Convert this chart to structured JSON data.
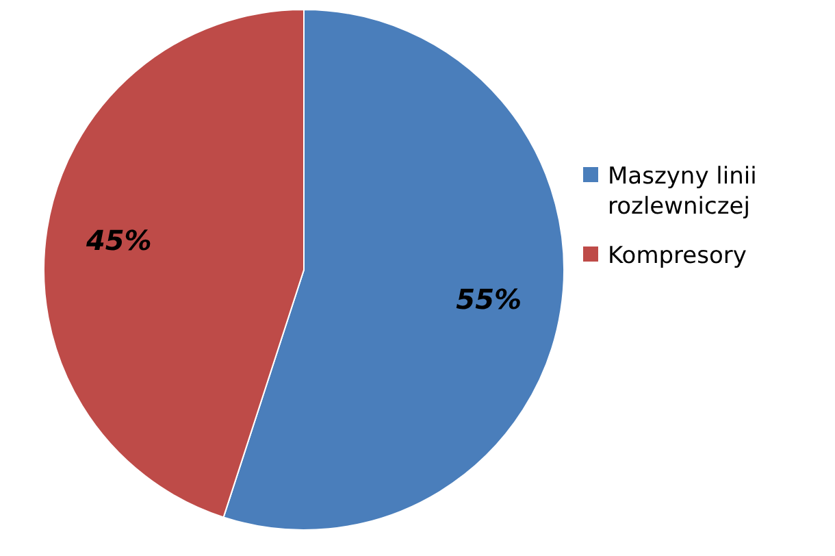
{
  "chart_data": {
    "type": "pie",
    "categories": [
      "Maszyny linii rozlewniczej",
      "Kompresory"
    ],
    "values": [
      55,
      45
    ],
    "colors": [
      "#4a7ebb",
      "#be4b48"
    ],
    "value_labels": [
      "55%",
      "45%"
    ],
    "legend": "right"
  }
}
